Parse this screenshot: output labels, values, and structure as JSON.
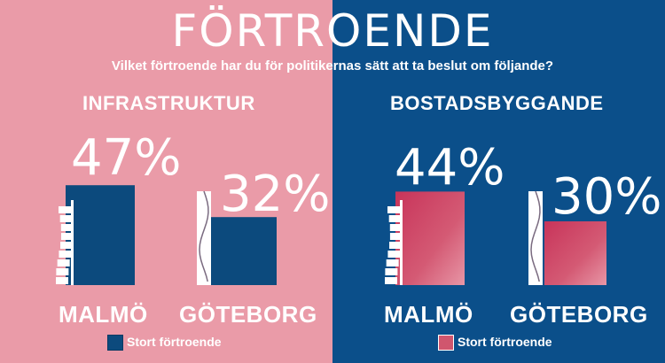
{
  "colors": {
    "pink_bg": "#ea9ba8",
    "blue_bg": "#0b4f8a",
    "navy_bar": "#0c4a7d",
    "red_bar": "#d0566e",
    "white": "#ffffff"
  },
  "header": {
    "title": "FÖRTROENDE",
    "subtitle": "Vilket förtroende har du för politikernas sätt att ta beslut om följande?"
  },
  "chart_data": [
    {
      "type": "bar",
      "title": "INFRASTRUKTUR",
      "categories": [
        "MALMÖ",
        "GÖTEBORG"
      ],
      "values": [
        47,
        32
      ],
      "value_labels": [
        "47%",
        "32%"
      ],
      "unit": "%",
      "ylim": [
        0,
        100
      ],
      "legend": "Stort förtroende",
      "legend_placement": "bottom",
      "bar_color": "#0c4a7d",
      "grid": false
    },
    {
      "type": "bar",
      "title": "BOSTADSBYGGANDE",
      "categories": [
        "MALMÖ",
        "GÖTEBORG"
      ],
      "values": [
        44,
        30
      ],
      "value_labels": [
        "44%",
        "30%"
      ],
      "unit": "%",
      "ylim": [
        0,
        100
      ],
      "legend": "Stort förtroende",
      "legend_placement": "bottom",
      "bar_color": "#d0566e",
      "grid": false
    }
  ],
  "icons": [
    "turning-torso-tower-icon",
    "twisted-tower-icon"
  ]
}
